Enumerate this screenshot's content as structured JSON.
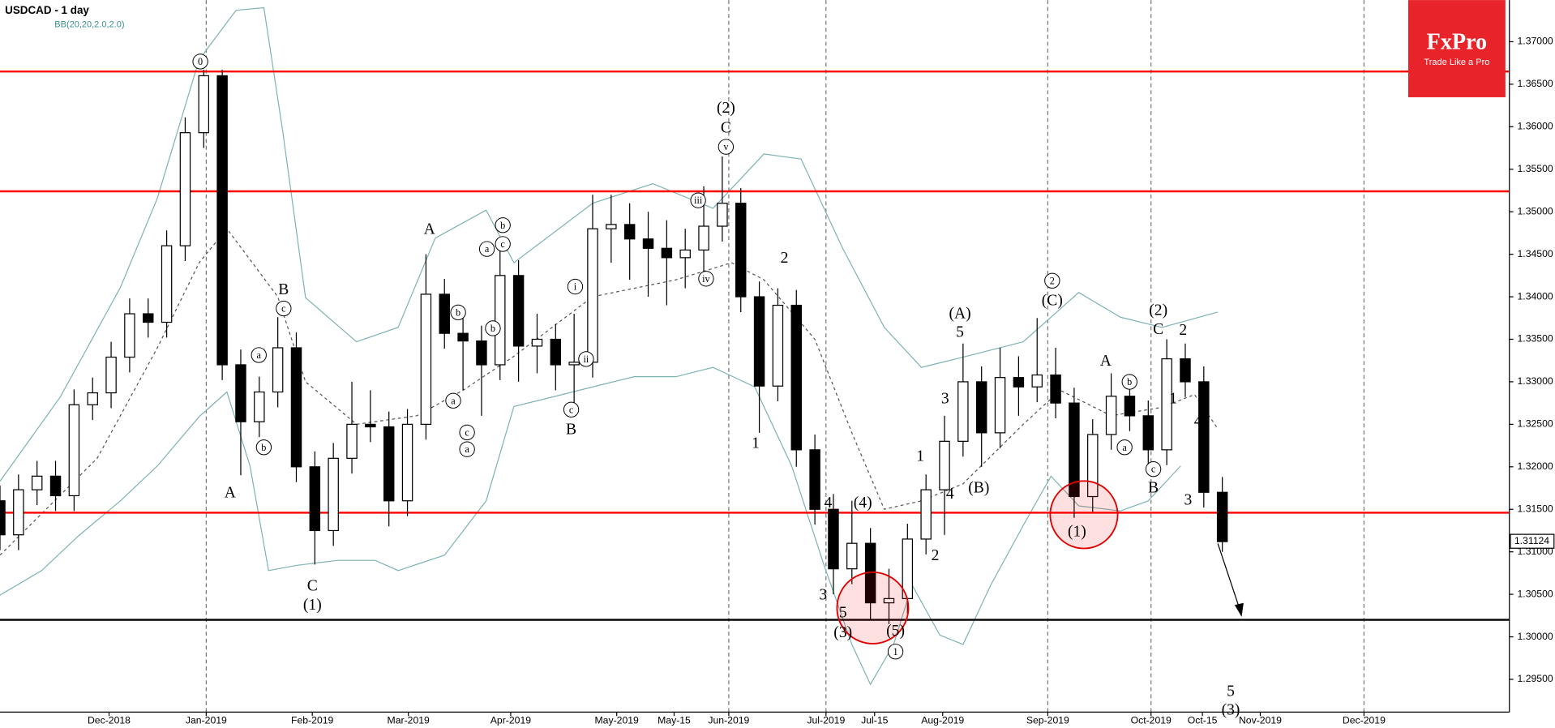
{
  "logo": {
    "brand": "FxPro",
    "slogan": "Trade Like a Pro"
  },
  "chart_data": {
    "type": "candlestick",
    "title": "USDCAD - 1 day",
    "indicator": "BB(20,20,2.0,2.0)",
    "up_color": "#ffffff",
    "down_color": "#000000",
    "band_color": "#7fb3b3",
    "xlim": [
      0,
      326
    ],
    "ylim": [
      1.29115,
      1.3749
    ],
    "x": [
      0,
      4,
      8,
      12,
      16,
      20,
      24,
      28,
      32,
      36,
      40,
      44,
      48,
      52,
      56,
      60,
      64,
      68,
      72,
      76,
      80,
      84,
      88,
      92,
      96,
      100,
      104,
      108,
      112,
      116,
      120,
      124,
      128,
      132,
      136,
      140,
      144,
      148,
      152,
      156,
      160,
      164,
      168,
      172,
      176,
      180,
      184,
      188,
      192,
      196,
      200,
      204,
      208,
      212,
      216,
      220,
      224,
      228,
      232,
      236,
      240,
      244,
      248,
      252,
      256,
      260,
      264
    ],
    "open": [
      1.316,
      1.312,
      1.3173,
      1.3189,
      1.3166,
      1.3273,
      1.3287,
      1.3329,
      1.338,
      1.337,
      1.346,
      1.3593,
      1.366,
      1.332,
      1.3253,
      1.3288,
      1.334,
      1.32,
      1.3125,
      1.321,
      1.325,
      1.3247,
      1.316,
      1.325,
      1.3403,
      1.3357,
      1.3348,
      1.332,
      1.3425,
      1.3342,
      1.335,
      1.332,
      1.3323,
      1.348,
      1.3485,
      1.3468,
      1.3457,
      1.3446,
      1.3455,
      1.3483,
      1.351,
      1.34,
      1.3295,
      1.339,
      1.322,
      1.315,
      1.308,
      1.311,
      1.304,
      1.3045,
      1.3115,
      1.3173,
      1.323,
      1.33,
      1.324,
      1.3305,
      1.3294,
      1.3308,
      1.3275,
      1.3165,
      1.3238,
      1.3283,
      1.326,
      1.322,
      1.3327,
      1.33,
      1.317
    ],
    "high": [
      1.3178,
      1.3191,
      1.3207,
      1.3207,
      1.3291,
      1.3305,
      1.3347,
      1.3398,
      1.3398,
      1.3478,
      1.3611,
      1.3667,
      1.3667,
      1.3338,
      1.3306,
      1.3376,
      1.3358,
      1.3218,
      1.3228,
      1.33,
      1.329,
      1.3265,
      1.3268,
      1.345,
      1.3421,
      1.3375,
      1.3366,
      1.346,
      1.3443,
      1.338,
      1.3368,
      1.338,
      1.352,
      1.352,
      1.351,
      1.35,
      1.349,
      1.348,
      1.353,
      1.3565,
      1.3528,
      1.3418,
      1.341,
      1.3408,
      1.3238,
      1.3168,
      1.316,
      1.3128,
      1.308,
      1.3133,
      1.3191,
      1.326,
      1.3345,
      1.3318,
      1.334,
      1.333,
      1.3375,
      1.334,
      1.3293,
      1.3256,
      1.331,
      1.3301,
      1.3278,
      1.335,
      1.3345,
      1.3318,
      1.3188
    ],
    "low": [
      1.3102,
      1.3102,
      1.3155,
      1.3148,
      1.3148,
      1.3255,
      1.3269,
      1.3311,
      1.3352,
      1.3352,
      1.3442,
      1.3575,
      1.3302,
      1.319,
      1.3235,
      1.327,
      1.3182,
      1.3085,
      1.3107,
      1.3192,
      1.3229,
      1.313,
      1.3142,
      1.3232,
      1.3339,
      1.329,
      1.326,
      1.3302,
      1.33,
      1.331,
      1.329,
      1.327,
      1.3305,
      1.344,
      1.342,
      1.34,
      1.339,
      1.341,
      1.343,
      1.3465,
      1.3382,
      1.324,
      1.3277,
      1.32,
      1.3132,
      1.305,
      1.3062,
      1.302,
      1.3015,
      1.3027,
      1.3097,
      1.312,
      1.3212,
      1.32,
      1.3222,
      1.326,
      1.3276,
      1.3257,
      1.314,
      1.3147,
      1.322,
      1.3242,
      1.32,
      1.3202,
      1.3282,
      1.3152,
      1.31
    ],
    "close": [
      1.312,
      1.3173,
      1.3189,
      1.3166,
      1.3273,
      1.3287,
      1.3329,
      1.338,
      1.337,
      1.346,
      1.3593,
      1.366,
      1.332,
      1.3253,
      1.3288,
      1.334,
      1.32,
      1.3125,
      1.321,
      1.325,
      1.3247,
      1.316,
      1.325,
      1.3403,
      1.3357,
      1.3348,
      1.332,
      1.3425,
      1.3342,
      1.335,
      1.332,
      1.3323,
      1.348,
      1.3485,
      1.3468,
      1.3457,
      1.3446,
      1.3455,
      1.3483,
      1.351,
      1.34,
      1.3295,
      1.339,
      1.322,
      1.315,
      1.308,
      1.311,
      1.304,
      1.3045,
      1.3115,
      1.3173,
      1.323,
      1.33,
      1.324,
      1.3305,
      1.3294,
      1.3308,
      1.3275,
      1.3165,
      1.3238,
      1.3283,
      1.326,
      1.322,
      1.3327,
      1.33,
      1.317,
      1.3112
    ],
    "bands": [
      {
        "dashed": false,
        "x": [
          0,
          13,
          26,
          34,
          43,
          51,
          57,
          61,
          66,
          77,
          86,
          94,
          105,
          111,
          128,
          141,
          154,
          165,
          173,
          182,
          191,
          199,
          208,
          221,
          233,
          242,
          251,
          263
        ],
        "values": [
          1.3183,
          1.3282,
          1.3411,
          1.3516,
          1.3679,
          1.3737,
          1.374,
          1.3597,
          1.3399,
          1.3347,
          1.3364,
          1.3469,
          1.3502,
          1.344,
          1.351,
          1.3533,
          1.3504,
          1.3568,
          1.3562,
          1.3457,
          1.3364,
          1.3317,
          1.3329,
          1.3347,
          1.3405,
          1.3376,
          1.3364,
          1.3382
        ]
      },
      {
        "dashed": true,
        "x": [
          0,
          21,
          34,
          43,
          49,
          60,
          66,
          77,
          90,
          100,
          111,
          128,
          146,
          158,
          165,
          176,
          184,
          191,
          199,
          208,
          221,
          229,
          240,
          251,
          258,
          263
        ],
        "values": [
          1.3096,
          1.321,
          1.334,
          1.344,
          1.348,
          1.34,
          1.33,
          1.325,
          1.326,
          1.329,
          1.333,
          1.34,
          1.342,
          1.344,
          1.342,
          1.335,
          1.324,
          1.315,
          1.316,
          1.318,
          1.325,
          1.329,
          1.326,
          1.327,
          1.3285,
          1.3245
        ]
      },
      {
        "dashed": false,
        "x": [
          0,
          9,
          17,
          26,
          34,
          43,
          49,
          54,
          58,
          64,
          73,
          81,
          86,
          96,
          105,
          111,
          120,
          128,
          137,
          146,
          154,
          163,
          171,
          178,
          184,
          188,
          193,
          197,
          203,
          208,
          214,
          221,
          227,
          233,
          242,
          248,
          255
        ],
        "values": [
          1.3049,
          1.3078,
          1.3119,
          1.316,
          1.3201,
          1.3259,
          1.3288,
          1.3201,
          1.3078,
          1.3084,
          1.309,
          1.309,
          1.3078,
          1.3096,
          1.316,
          1.3271,
          1.3283,
          1.3294,
          1.3306,
          1.3306,
          1.3317,
          1.3294,
          1.3201,
          1.3084,
          1.2991,
          1.2944,
          1.2991,
          1.3061,
          1.3002,
          1.2991,
          1.3061,
          1.3131,
          1.3189,
          1.3154,
          1.3148,
          1.316,
          1.3201
        ]
      }
    ],
    "levels": [
      {
        "value": 1.3665,
        "color": "#ff0000"
      },
      {
        "value": 1.3524,
        "color": "#ff0000"
      },
      {
        "value": 1.3146,
        "color": "#ff0000"
      },
      {
        "value": 1.302,
        "color": "#000000"
      }
    ],
    "last_price": {
      "value": 1.31124,
      "label": "1.31124"
    },
    "xticks": [
      {
        "value": 23.55,
        "label": "Dec-2018"
      },
      {
        "value": 44.54,
        "label": "Jan-2019"
      },
      {
        "value": 67.45,
        "label": "Feb-2019"
      },
      {
        "value": 88.2,
        "label": "Mar-2019"
      },
      {
        "value": 110.3,
        "label": "Apr-2019"
      },
      {
        "value": 133.2,
        "label": "May-2019"
      },
      {
        "value": 145.6,
        "label": "May-15"
      },
      {
        "value": 157.4,
        "label": "Jun-2019"
      },
      {
        "value": 178.4,
        "label": "Jul-2019"
      },
      {
        "value": 188.9,
        "label": "Jul-15"
      },
      {
        "value": 203.6,
        "label": "Aug-2019"
      },
      {
        "value": 226.3,
        "label": "Sep-2019"
      },
      {
        "value": 248.6,
        "label": "Oct-2019"
      },
      {
        "value": 259.7,
        "label": "Oct-15"
      },
      {
        "value": 272.2,
        "label": "Nov-2019"
      },
      {
        "value": 294.6,
        "label": "Dec-2019"
      }
    ],
    "yticks": [
      {
        "value": 1.37,
        "label": "1.37000"
      },
      {
        "value": 1.365,
        "label": "1.36500"
      },
      {
        "value": 1.36,
        "label": "1.36000"
      },
      {
        "value": 1.355,
        "label": "1.35500"
      },
      {
        "value": 1.35,
        "label": "1.35000"
      },
      {
        "value": 1.345,
        "label": "1.34500"
      },
      {
        "value": 1.34,
        "label": "1.34000"
      },
      {
        "value": 1.335,
        "label": "1.33500"
      },
      {
        "value": 1.33,
        "label": "1.33000"
      },
      {
        "value": 1.325,
        "label": "1.32500"
      },
      {
        "value": 1.32,
        "label": "1.32000"
      },
      {
        "value": 1.315,
        "label": "1.31500"
      },
      {
        "value": 1.31,
        "label": "1.31000"
      },
      {
        "value": 1.305,
        "label": "1.30500"
      },
      {
        "value": 1.3,
        "label": "1.30000"
      },
      {
        "value": 1.295,
        "label": "1.29500"
      }
    ],
    "annotations": [
      {
        "text": "0",
        "circled": true
      },
      {
        "text": "B",
        "circled": false
      },
      {
        "text": "c",
        "circled": true
      },
      {
        "text": "a",
        "circled": true
      },
      {
        "text": "b",
        "circled": true
      },
      {
        "text": "A",
        "circled": false
      },
      {
        "text": "C",
        "circled": false
      },
      {
        "text": "(1)",
        "circled": false
      },
      {
        "text": "A",
        "circled": false
      },
      {
        "text": "b",
        "circled": true
      },
      {
        "text": "a",
        "circled": true
      },
      {
        "text": "c",
        "circled": true
      },
      {
        "text": "b",
        "circled": true
      },
      {
        "text": "b",
        "circled": true
      },
      {
        "text": "a",
        "circled": true
      },
      {
        "text": "c",
        "circled": true
      },
      {
        "text": "a",
        "circled": true
      },
      {
        "text": "i",
        "circled": true
      },
      {
        "text": "ii",
        "circled": true
      },
      {
        "text": "c",
        "circled": true
      },
      {
        "text": "B",
        "circled": false
      },
      {
        "text": "iii",
        "circled": true
      },
      {
        "text": "iv",
        "circled": true
      },
      {
        "text": "v",
        "circled": true
      },
      {
        "text": "C",
        "circled": false
      },
      {
        "text": "(2)",
        "circled": false
      },
      {
        "text": "2",
        "circled": false
      },
      {
        "text": "1",
        "circled": false
      },
      {
        "text": "4",
        "circled": false
      },
      {
        "text": "(4)",
        "circled": false
      },
      {
        "text": "3",
        "circled": false
      },
      {
        "text": "5",
        "circled": false
      },
      {
        "text": "(3)",
        "circled": false
      },
      {
        "text": "(5)",
        "circled": false
      },
      {
        "text": "1",
        "circled": true
      },
      {
        "text": "1",
        "circled": false
      },
      {
        "text": "2",
        "circled": false
      },
      {
        "text": "3",
        "circled": false
      },
      {
        "text": "4",
        "circled": false
      },
      {
        "text": "(B)",
        "circled": false
      },
      {
        "text": "5",
        "circled": false
      },
      {
        "text": "(A)",
        "circled": false
      },
      {
        "text": "2",
        "circled": true
      },
      {
        "text": "(C)",
        "circled": false
      },
      {
        "text": "(1)",
        "circled": false
      },
      {
        "text": "A",
        "circled": false
      },
      {
        "text": "b",
        "circled": true
      },
      {
        "text": "a",
        "circled": true
      },
      {
        "text": "(2)",
        "circled": false
      },
      {
        "text": "C",
        "circled": false
      },
      {
        "text": "c",
        "circled": true
      },
      {
        "text": "B",
        "circled": false
      },
      {
        "text": "2",
        "circled": false
      },
      {
        "text": "1",
        "circled": false
      },
      {
        "text": "4",
        "circled": false
      },
      {
        "text": "3",
        "circled": false
      },
      {
        "text": "5",
        "circled": false
      },
      {
        "text": "(3)",
        "circled": false
      }
    ]
  }
}
